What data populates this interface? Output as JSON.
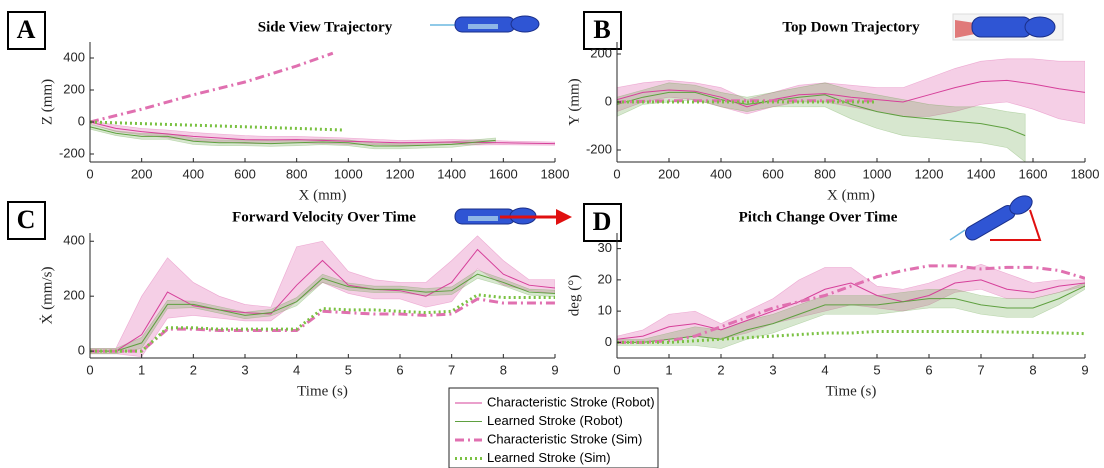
{
  "chart_data": [
    {
      "type": "line",
      "panel": "A",
      "title": "Side View Trajectory",
      "xlabel": "X (mm)",
      "ylabel": "Z (mm)",
      "xlim": [
        0,
        1800
      ],
      "ylim": [
        -250,
        500
      ],
      "xticks": [
        0,
        200,
        400,
        600,
        800,
        1000,
        1200,
        1400,
        1600,
        1800
      ],
      "yticks": [
        -200,
        0,
        200,
        400
      ],
      "series": [
        {
          "name": "Characteristic Stroke (Robot)",
          "color": "#d6409a",
          "style": "solid",
          "x": [
            0,
            100,
            200,
            300,
            400,
            500,
            600,
            700,
            800,
            900,
            1000,
            1100,
            1200,
            1300,
            1400,
            1500,
            1600,
            1700,
            1800
          ],
          "values": [
            0,
            -40,
            -60,
            -75,
            -90,
            -100,
            -110,
            -112,
            -110,
            -115,
            -120,
            -125,
            -130,
            -128,
            -125,
            -128,
            -130,
            -133,
            -135
          ],
          "upper": [
            10,
            -20,
            -40,
            -50,
            -65,
            -75,
            -85,
            -90,
            -90,
            -95,
            -100,
            -108,
            -115,
            -112,
            -110,
            -112,
            -118,
            -122,
            -125
          ],
          "lower": [
            -10,
            -60,
            -80,
            -100,
            -115,
            -125,
            -135,
            -135,
            -130,
            -135,
            -140,
            -142,
            -145,
            -144,
            -140,
            -144,
            -142,
            -144,
            -145
          ]
        },
        {
          "name": "Learned Stroke (Robot)",
          "color": "#5fa040",
          "style": "solid",
          "x": [
            0,
            100,
            200,
            300,
            400,
            500,
            600,
            700,
            800,
            900,
            1000,
            1100,
            1200,
            1300,
            1400,
            1500,
            1570
          ],
          "values": [
            -30,
            -70,
            -90,
            -90,
            -120,
            -130,
            -130,
            -135,
            -130,
            -125,
            -130,
            -150,
            -150,
            -145,
            -140,
            -125,
            -115
          ],
          "upper": [
            -15,
            -55,
            -72,
            -72,
            -100,
            -112,
            -112,
            -118,
            -112,
            -108,
            -112,
            -132,
            -132,
            -128,
            -122,
            -110,
            -100
          ],
          "lower": [
            -45,
            -85,
            -108,
            -108,
            -140,
            -148,
            -148,
            -152,
            -148,
            -142,
            -148,
            -168,
            -168,
            -162,
            -158,
            -140,
            -130
          ]
        },
        {
          "name": "Characteristic Stroke (Sim)",
          "color": "#e070b0",
          "style": "dashdot",
          "x": [
            0,
            200,
            400,
            600,
            800,
            940
          ],
          "values": [
            0,
            80,
            170,
            250,
            350,
            430
          ]
        },
        {
          "name": "Learned Stroke (Sim)",
          "color": "#7ac142",
          "style": "dotted",
          "x": [
            0,
            200,
            400,
            600,
            800,
            980
          ],
          "values": [
            0,
            -10,
            -20,
            -30,
            -40,
            -50
          ]
        }
      ]
    },
    {
      "type": "line",
      "panel": "B",
      "title": "Top Down Trajectory",
      "xlabel": "X (mm)",
      "ylabel": "Y (mm)",
      "xlim": [
        0,
        1800
      ],
      "ylim": [
        -250,
        250
      ],
      "xticks": [
        0,
        200,
        400,
        600,
        800,
        1000,
        1200,
        1400,
        1600,
        1800
      ],
      "yticks": [
        -200,
        0,
        200
      ],
      "series": [
        {
          "name": "Characteristic Stroke (Robot)",
          "color": "#d6409a",
          "style": "solid",
          "x": [
            0,
            100,
            200,
            300,
            400,
            500,
            600,
            700,
            800,
            900,
            1000,
            1100,
            1200,
            1300,
            1400,
            1500,
            1600,
            1700,
            1800
          ],
          "values": [
            10,
            40,
            50,
            45,
            20,
            -20,
            10,
            30,
            35,
            20,
            10,
            0,
            30,
            60,
            85,
            90,
            75,
            55,
            40
          ],
          "upper": [
            60,
            80,
            90,
            80,
            60,
            10,
            40,
            70,
            80,
            70,
            60,
            60,
            100,
            140,
            170,
            180,
            180,
            170,
            170
          ],
          "lower": [
            -40,
            0,
            20,
            10,
            -20,
            -50,
            -20,
            0,
            0,
            -20,
            -40,
            -60,
            -60,
            -40,
            -10,
            0,
            -30,
            -70,
            -90
          ]
        },
        {
          "name": "Learned Stroke (Robot)",
          "color": "#5fa040",
          "style": "solid",
          "x": [
            0,
            100,
            200,
            300,
            400,
            500,
            600,
            700,
            800,
            900,
            1000,
            1100,
            1200,
            1300,
            1400,
            1500,
            1570
          ],
          "values": [
            -10,
            20,
            40,
            40,
            10,
            -10,
            5,
            20,
            30,
            -10,
            -40,
            -60,
            -70,
            -80,
            -90,
            -110,
            -140
          ],
          "upper": [
            20,
            50,
            80,
            70,
            40,
            20,
            40,
            60,
            80,
            50,
            30,
            10,
            -10,
            -20,
            -20,
            -40,
            -50
          ],
          "lower": [
            -60,
            -10,
            0,
            10,
            -20,
            -40,
            -20,
            -20,
            -20,
            -70,
            -110,
            -140,
            -150,
            -160,
            -170,
            -190,
            -250
          ]
        },
        {
          "name": "Characteristic Stroke (Sim)",
          "color": "#e070b0",
          "style": "dashdot",
          "x": [
            0,
            200,
            400,
            600,
            800,
            1000
          ],
          "values": [
            0,
            5,
            5,
            5,
            5,
            5
          ]
        },
        {
          "name": "Learned Stroke (Sim)",
          "color": "#7ac142",
          "style": "dotted",
          "x": [
            0,
            200,
            400,
            600,
            800,
            1000
          ],
          "values": [
            0,
            0,
            0,
            0,
            0,
            0
          ]
        }
      ]
    },
    {
      "type": "line",
      "panel": "C",
      "title": "Forward Velocity Over Time",
      "xlabel": "Time (s)",
      "ylabel": "Ẋ (mm/s)",
      "xlim": [
        0,
        9
      ],
      "ylim": [
        -25,
        430
      ],
      "xticks": [
        0,
        1,
        2,
        3,
        4,
        5,
        6,
        7,
        8,
        9
      ],
      "yticks": [
        0,
        200,
        400
      ],
      "series": [
        {
          "name": "Characteristic Stroke (Robot)",
          "color": "#d6409a",
          "style": "solid",
          "x": [
            0,
            0.5,
            1,
            1.5,
            2,
            2.5,
            3,
            3.5,
            4,
            4.5,
            5,
            5.5,
            6,
            6.5,
            7,
            7.5,
            8,
            8.5,
            9
          ],
          "values": [
            0,
            0,
            60,
            215,
            165,
            150,
            140,
            135,
            240,
            330,
            240,
            225,
            220,
            200,
            250,
            370,
            280,
            240,
            230
          ],
          "upper": [
            10,
            10,
            200,
            340,
            250,
            200,
            170,
            160,
            380,
            400,
            290,
            260,
            250,
            250,
            330,
            420,
            330,
            260,
            260
          ],
          "lower": [
            -10,
            -10,
            -20,
            120,
            130,
            120,
            110,
            110,
            180,
            250,
            210,
            190,
            190,
            160,
            180,
            300,
            240,
            220,
            210
          ]
        },
        {
          "name": "Learned Stroke (Robot)",
          "color": "#5fa040",
          "style": "solid",
          "x": [
            0,
            0.5,
            1,
            1.5,
            2,
            2.5,
            3,
            3.5,
            4,
            4.5,
            5,
            5.5,
            6,
            6.5,
            7,
            7.5,
            8,
            8.5,
            9
          ],
          "values": [
            0,
            0,
            30,
            170,
            170,
            150,
            130,
            140,
            180,
            265,
            235,
            225,
            225,
            215,
            220,
            280,
            250,
            215,
            210
          ],
          "upper": [
            10,
            10,
            50,
            185,
            182,
            162,
            142,
            152,
            195,
            280,
            248,
            237,
            237,
            228,
            234,
            295,
            262,
            226,
            222
          ],
          "lower": [
            -10,
            -10,
            10,
            155,
            158,
            138,
            118,
            128,
            165,
            250,
            222,
            213,
            213,
            202,
            206,
            265,
            238,
            204,
            198
          ]
        },
        {
          "name": "Characteristic Stroke (Sim)",
          "color": "#e070b0",
          "style": "dashdot",
          "x": [
            0,
            0.5,
            1,
            1.5,
            2,
            2.5,
            3,
            3.5,
            4,
            4.5,
            5,
            5.5,
            6,
            6.5,
            7,
            7.5,
            8,
            8.5,
            9
          ],
          "values": [
            0,
            0,
            0,
            80,
            80,
            75,
            75,
            75,
            75,
            145,
            140,
            135,
            135,
            130,
            135,
            190,
            175,
            175,
            175
          ]
        },
        {
          "name": "Learned Stroke (Sim)",
          "color": "#7ac142",
          "style": "dotted",
          "x": [
            0,
            0.5,
            1,
            1.5,
            2,
            2.5,
            3,
            3.5,
            4,
            4.5,
            5,
            5.5,
            6,
            6.5,
            7,
            7.5,
            8,
            8.5,
            9
          ],
          "values": [
            0,
            0,
            0,
            85,
            85,
            80,
            80,
            80,
            80,
            155,
            150,
            150,
            145,
            140,
            145,
            205,
            195,
            195,
            195
          ]
        }
      ]
    },
    {
      "type": "line",
      "panel": "D",
      "title": "Pitch Change Over Time",
      "xlabel": "Time (s)",
      "ylabel": "deg (°)",
      "xlim": [
        0,
        9
      ],
      "ylim": [
        -5,
        35
      ],
      "xticks": [
        0,
        1,
        2,
        3,
        4,
        5,
        6,
        7,
        8,
        9
      ],
      "yticks": [
        0,
        10,
        20,
        30
      ],
      "series": [
        {
          "name": "Characteristic Stroke (Robot)",
          "color": "#d6409a",
          "style": "solid",
          "x": [
            0,
            0.5,
            1,
            1.5,
            2,
            2.5,
            3,
            3.5,
            4,
            4.5,
            5,
            5.5,
            6,
            6.5,
            7,
            7.5,
            8,
            8.5,
            9
          ],
          "values": [
            1,
            2,
            5,
            6,
            4,
            7,
            10,
            13,
            17,
            19,
            15,
            13,
            15,
            19,
            20,
            17,
            16,
            18,
            19
          ],
          "upper": [
            2,
            4,
            9,
            10,
            6,
            10,
            14,
            20,
            24,
            24,
            18,
            17,
            19,
            22,
            25,
            22,
            19,
            20,
            20
          ],
          "lower": [
            0,
            0,
            1,
            2,
            1,
            3,
            6,
            8,
            10,
            12,
            11,
            10,
            12,
            16,
            17,
            14,
            14,
            16,
            18
          ]
        },
        {
          "name": "Learned Stroke (Robot)",
          "color": "#5fa040",
          "style": "solid",
          "x": [
            0,
            0.5,
            1,
            1.5,
            2,
            2.5,
            3,
            3.5,
            4,
            4.5,
            5,
            5.5,
            6,
            6.5,
            7,
            7.5,
            8,
            8.5,
            9
          ],
          "values": [
            0,
            0,
            1,
            2,
            1,
            4,
            6,
            9,
            12,
            12,
            12,
            13,
            14,
            14,
            12,
            11,
            11,
            14,
            18
          ],
          "upper": [
            1,
            1,
            3,
            5,
            4,
            7,
            9,
            12,
            15,
            15,
            15,
            16,
            17,
            17,
            15,
            14,
            14,
            16,
            19
          ],
          "lower": [
            -1,
            -1,
            -1,
            -1,
            -2,
            1,
            3,
            6,
            9,
            9,
            9,
            10,
            11,
            11,
            9,
            8,
            8,
            12,
            17
          ]
        },
        {
          "name": "Characteristic Stroke (Sim)",
          "color": "#e070b0",
          "style": "dashdot",
          "x": [
            0,
            0.5,
            1,
            1.5,
            2,
            2.5,
            3,
            3.5,
            4,
            4.5,
            5,
            5.5,
            6,
            6.5,
            7,
            7.5,
            8,
            8.5,
            9
          ],
          "values": [
            0,
            0,
            0.5,
            2,
            5,
            8,
            11,
            13,
            15,
            18,
            21,
            23,
            24.5,
            24.5,
            23.5,
            24,
            24,
            23,
            20.5
          ]
        },
        {
          "name": "Learned Stroke (Sim)",
          "color": "#7ac142",
          "style": "dotted",
          "x": [
            0,
            0.5,
            1,
            1.5,
            2,
            2.5,
            3,
            3.5,
            4,
            4.5,
            5,
            5.5,
            6,
            6.5,
            7,
            7.5,
            8,
            8.5,
            9
          ],
          "values": [
            0,
            0,
            0,
            0.5,
            1,
            1.5,
            2,
            2.5,
            3,
            3,
            3.5,
            3.5,
            3.5,
            3.5,
            3.5,
            3.3,
            3.2,
            3,
            2.8
          ]
        }
      ]
    }
  ]
}
